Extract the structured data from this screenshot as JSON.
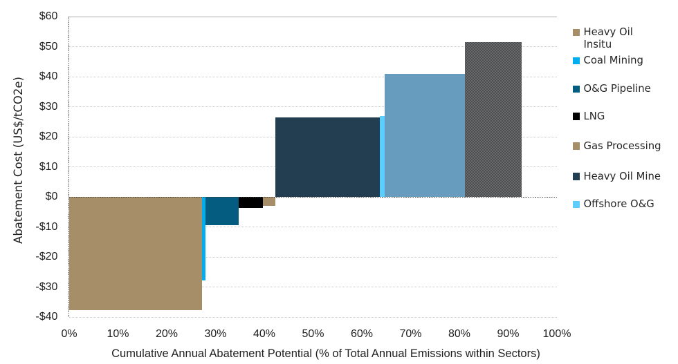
{
  "chart_data": {
    "type": "bar",
    "variant": "marginal-abatement-cost-curve",
    "title": "",
    "xlabel": "Cumulative Annual Abatement Potential (% of Total Annual Emissions within Sectors)",
    "ylabel": "Abatement Cost (US$/tCO2e)",
    "xlim": [
      0,
      100
    ],
    "ylim": [
      -40,
      60
    ],
    "grid": "horizontal-dotted",
    "legend_position": "right",
    "x_ticks": [
      "0%",
      "10%",
      "20%",
      "30%",
      "40%",
      "50%",
      "60%",
      "70%",
      "80%",
      "90%",
      "100%"
    ],
    "x_tick_values_pct": [
      0,
      10,
      20,
      30,
      40,
      50,
      60,
      70,
      80,
      90,
      100
    ],
    "y_ticks": [
      "$60",
      "$50",
      "$40",
      "$30",
      "$20",
      "$10",
      "$0",
      "-$10",
      "-$20",
      "-$30",
      "-$40"
    ],
    "y_tick_values_usd": [
      60,
      50,
      40,
      30,
      20,
      10,
      0,
      -10,
      -20,
      -30,
      -40
    ],
    "bars": [
      {
        "series": "Heavy Oil Insitu",
        "x_start_pct": 0.0,
        "x_end_pct": 27.2,
        "cost_usd_per_tco2e": -37.7,
        "color": "#a68f68",
        "pattern": "solid"
      },
      {
        "series": "Coal Mining",
        "x_start_pct": 27.2,
        "x_end_pct": 27.9,
        "cost_usd_per_tco2e": -27.8,
        "color": "#00aeef",
        "pattern": "solid"
      },
      {
        "series": "O&G Pipeline",
        "x_start_pct": 27.9,
        "x_end_pct": 34.7,
        "cost_usd_per_tco2e": -9.5,
        "color": "#045d81",
        "pattern": "solid"
      },
      {
        "series": "LNG",
        "x_start_pct": 34.7,
        "x_end_pct": 39.7,
        "cost_usd_per_tco2e": -3.6,
        "color": "#000000",
        "pattern": "solid"
      },
      {
        "series": "Gas Processing",
        "x_start_pct": 39.7,
        "x_end_pct": 42.3,
        "cost_usd_per_tco2e": -3.1,
        "color": "#a68f68",
        "pattern": "solid"
      },
      {
        "series": "Heavy Oil Mine",
        "x_start_pct": 42.3,
        "x_end_pct": 63.7,
        "cost_usd_per_tco2e": 26.5,
        "color": "#233e51",
        "pattern": "solid"
      },
      {
        "series": "Offshore O&G",
        "x_start_pct": 63.7,
        "x_end_pct": 64.7,
        "cost_usd_per_tco2e": 26.8,
        "color": "#5bcefe",
        "pattern": "solid"
      },
      {
        "series": "",
        "x_start_pct": 64.7,
        "x_end_pct": 81.1,
        "cost_usd_per_tco2e": 41.0,
        "color": "#679cbe",
        "pattern": "solid"
      },
      {
        "series": "",
        "x_start_pct": 81.1,
        "x_end_pct": 92.8,
        "cost_usd_per_tco2e": 51.6,
        "color": "#6b6c6e",
        "pattern": "crosshatch-weave"
      }
    ],
    "legend_entries": [
      {
        "label": "Heavy Oil Insitu",
        "lines": [
          "Heavy Oil",
          "Insitu"
        ],
        "color": "#a68f68"
      },
      {
        "label": "Coal Mining",
        "lines": [
          "Coal Mining"
        ],
        "color": "#00aeef"
      },
      {
        "label": "O&G Pipeline",
        "lines": [
          "O&G Pipeline"
        ],
        "color": "#045d81"
      },
      {
        "label": "LNG",
        "lines": [
          "LNG"
        ],
        "color": "#000000"
      },
      {
        "label": "Gas Processing",
        "lines": [
          "Gas Processing"
        ],
        "color": "#a68f68"
      },
      {
        "label": "Heavy Oil Mine",
        "lines": [
          "Heavy Oil Mine"
        ],
        "color": "#233e51"
      },
      {
        "label": "Offshore O&G",
        "lines": [
          "Offshore O&G"
        ],
        "color": "#5bcefe"
      }
    ],
    "colors": {
      "background": "#ffffff",
      "text": "#1f1f1f",
      "gridline": "#c9c9c9",
      "plot_top_border": "#a9a9a9",
      "zero_axis_line": "#3f3f3f",
      "y_axis_line": "#5f5f5f"
    }
  }
}
